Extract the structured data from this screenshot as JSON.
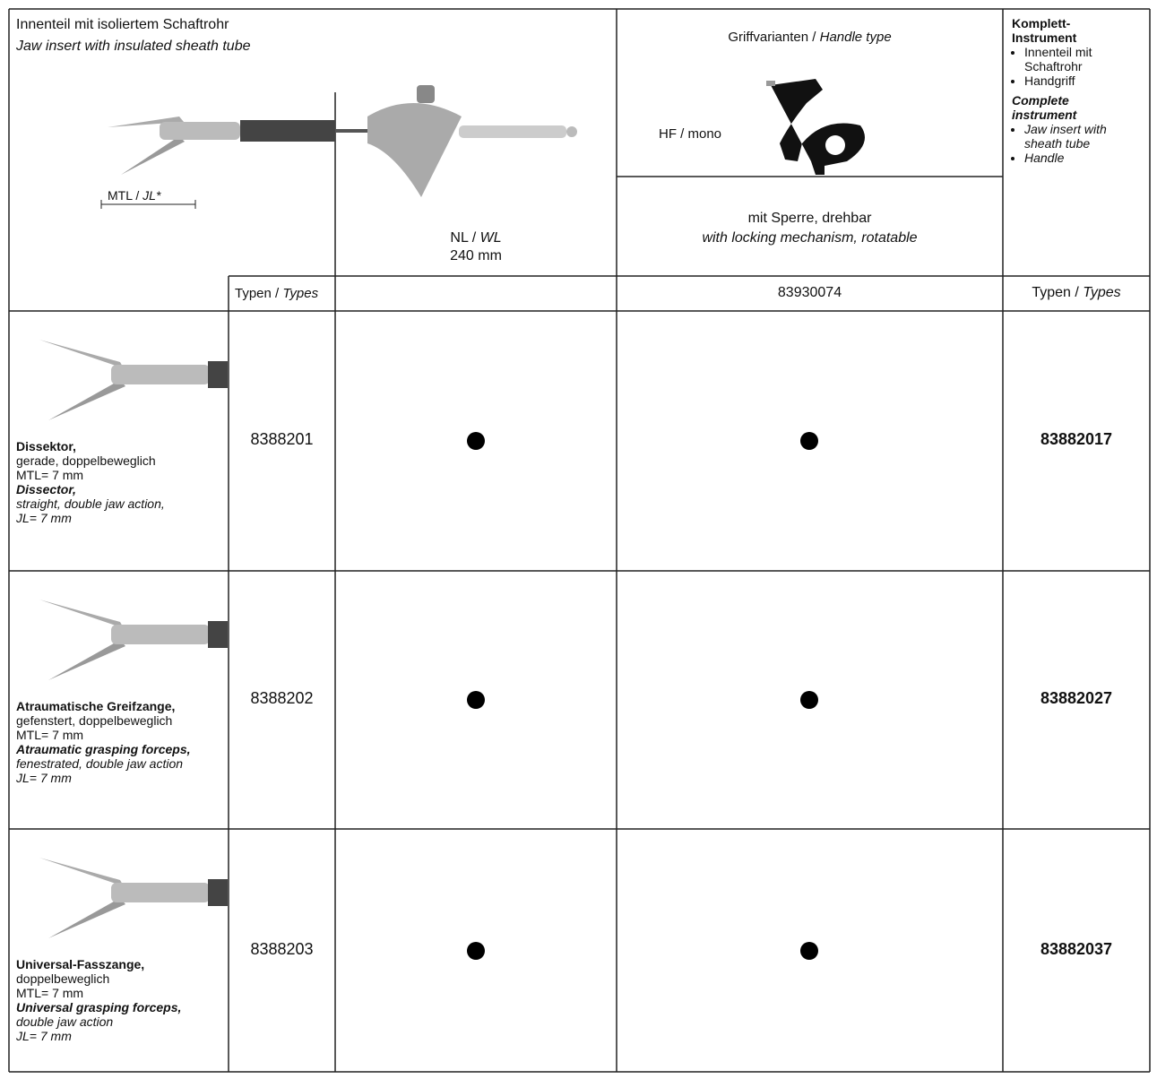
{
  "header": {
    "jaw_insert": {
      "de": "Innenteil mit isoliertem Schaftrohr",
      "en": "Jaw insert with insulated sheath tube"
    },
    "jaw_length_label": {
      "de": "MTL /",
      "en": "JL*"
    },
    "working_length": {
      "label_de": "NL /",
      "label_en": "WL",
      "value": "240 mm"
    },
    "handle": {
      "title_de": "Griffvarianten /",
      "title_en": "Handle type",
      "variant": "HF / mono",
      "feature_de": "mit Sperre, drehbar",
      "feature_en": "with locking mechanism, rotatable",
      "type": "83930074"
    },
    "complete": {
      "title_de": "Komplett-Instrument",
      "items_de": [
        "Innenteil mit Schaftrohr",
        "Handgriff"
      ],
      "title_en": "Complete instrument",
      "items_en": [
        "Jaw insert with sheath tube",
        "Handle"
      ]
    },
    "types_label": {
      "de": "Typen /",
      "en": "Types"
    }
  },
  "rows": [
    {
      "name_de": "Dissektor,",
      "lines_de": [
        "gerade, doppelbeweglich",
        "MTL= 7 mm"
      ],
      "name_en": "Dissector,",
      "lines_en": [
        "straight, double jaw action,",
        "JL= 7 mm"
      ],
      "type": "8388201",
      "with_240mm": true,
      "with_handle": true,
      "complete_type": "83882017"
    },
    {
      "name_de": "Atraumatische Greifzange,",
      "lines_de": [
        "gefenstert, doppelbeweglich",
        "MTL= 7 mm"
      ],
      "name_en": "Atraumatic grasping forceps,",
      "lines_en": [
        "fenestrated, double jaw action",
        "JL= 7 mm"
      ],
      "type": "8388202",
      "with_240mm": true,
      "with_handle": true,
      "complete_type": "83882027"
    },
    {
      "name_de": "Universal-Fasszange,",
      "lines_de": [
        "doppelbeweglich",
        "MTL= 7 mm"
      ],
      "name_en": "Universal grasping forceps,",
      "lines_en": [
        "double jaw action",
        "JL= 7 mm"
      ],
      "type": "8388203",
      "with_240mm": true,
      "with_handle": true,
      "complete_type": "83882037"
    }
  ]
}
